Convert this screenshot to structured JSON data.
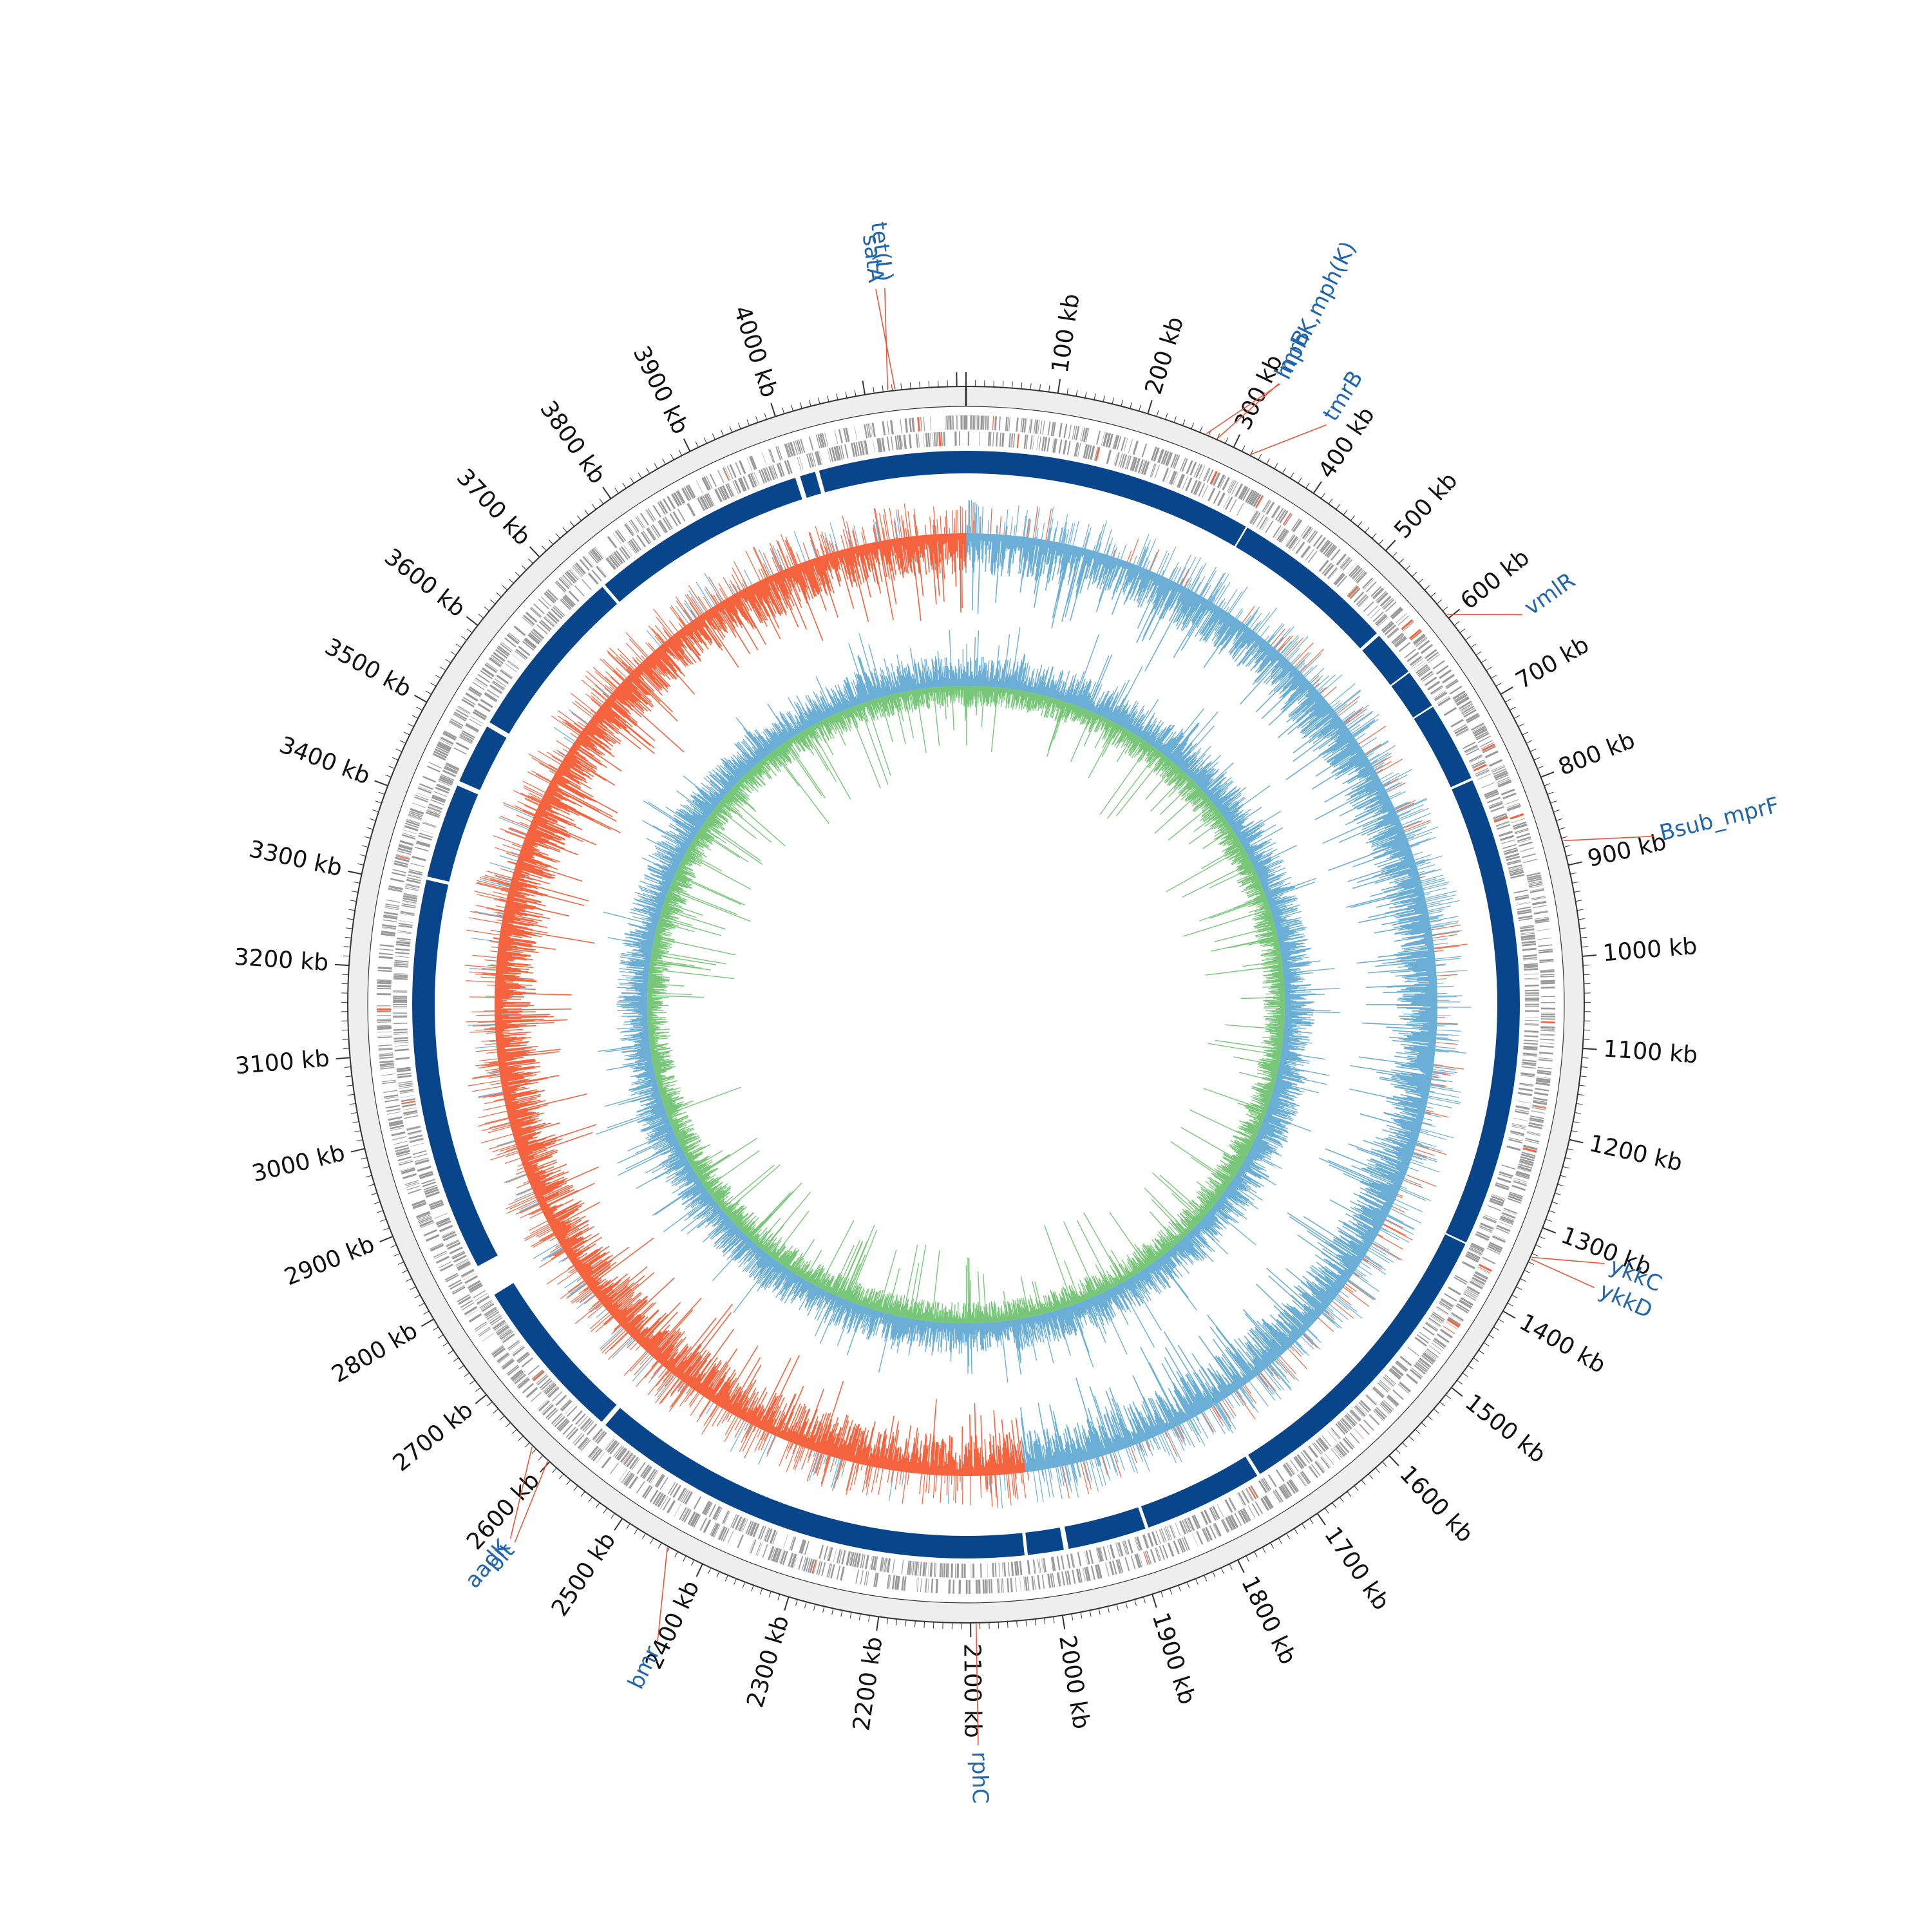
{
  "genome": {
    "length_kb": 4210,
    "tick_unit": "kb",
    "major_ticks_kb": [
      100,
      200,
      300,
      400,
      500,
      600,
      700,
      800,
      900,
      1000,
      1100,
      1200,
      1300,
      1400,
      1500,
      1600,
      1700,
      1800,
      1900,
      2000,
      2100,
      2200,
      2300,
      2400,
      2500,
      2600,
      2700,
      2800,
      2900,
      3000,
      3100,
      3200,
      3300,
      3400,
      3500,
      3600,
      3700,
      3800,
      3900,
      4000
    ],
    "major_tick_labels": [
      "100 kb",
      "200 kb",
      "300 kb",
      "400 kb",
      "500 kb",
      "600 kb",
      "700 kb",
      "800 kb",
      "900 kb",
      "1000 kb",
      "1100 kb",
      "1200 kb",
      "1300 kb",
      "1400 kb",
      "1500 kb",
      "1600 kb",
      "1700 kb",
      "1800 kb",
      "1900 kb",
      "2000 kb",
      "2100 kb",
      "2200 kb",
      "2300 kb",
      "2400 kb",
      "2500 kb",
      "2600 kb",
      "2700 kb",
      "2800 kb",
      "2900 kb",
      "3000 kb",
      "3100 kb",
      "3200 kb",
      "3300 kb",
      "3400 kb",
      "3500 kb",
      "3600 kb",
      "3700 kb",
      "3800 kb",
      "3900 kb",
      "4000 kb"
    ],
    "minor_tick_step_kb": 10
  },
  "genes": [
    {
      "name": "tet(L)",
      "position_kb": 4125
    },
    {
      "name": "satA",
      "position_kb": 4133
    },
    {
      "name": "mphK,mph(K)",
      "position_kb": 267
    },
    {
      "name": "lmrB",
      "position_kb": 280
    },
    {
      "name": "tmrB",
      "position_kb": 320
    },
    {
      "name": "vmlR",
      "position_kb": 596
    },
    {
      "name": "Bsub_mprF",
      "position_kb": 873
    },
    {
      "name": "ykkC",
      "position_kb": 1334
    },
    {
      "name": "ykkD",
      "position_kb": 1336
    },
    {
      "name": "rphC",
      "position_kb": 2094
    },
    {
      "name": "bmr",
      "position_kb": 2442
    },
    {
      "name": "aadK",
      "position_kb": 2625
    },
    {
      "name": "blt",
      "position_kb": 2602
    }
  ],
  "tracks": {
    "skew_positive_range_kb": [
      0,
      2020
    ],
    "colors": {
      "label": "#2166ac",
      "leader_line": "#e8553a",
      "backbone_band": "#eeeeee",
      "features": "#999999",
      "blocks": "#08458a",
      "skew_positive": "#6baed6",
      "skew_negative": "#f4633e",
      "gc_outer": "#6baed6",
      "gc_inner": "#78c679"
    }
  }
}
